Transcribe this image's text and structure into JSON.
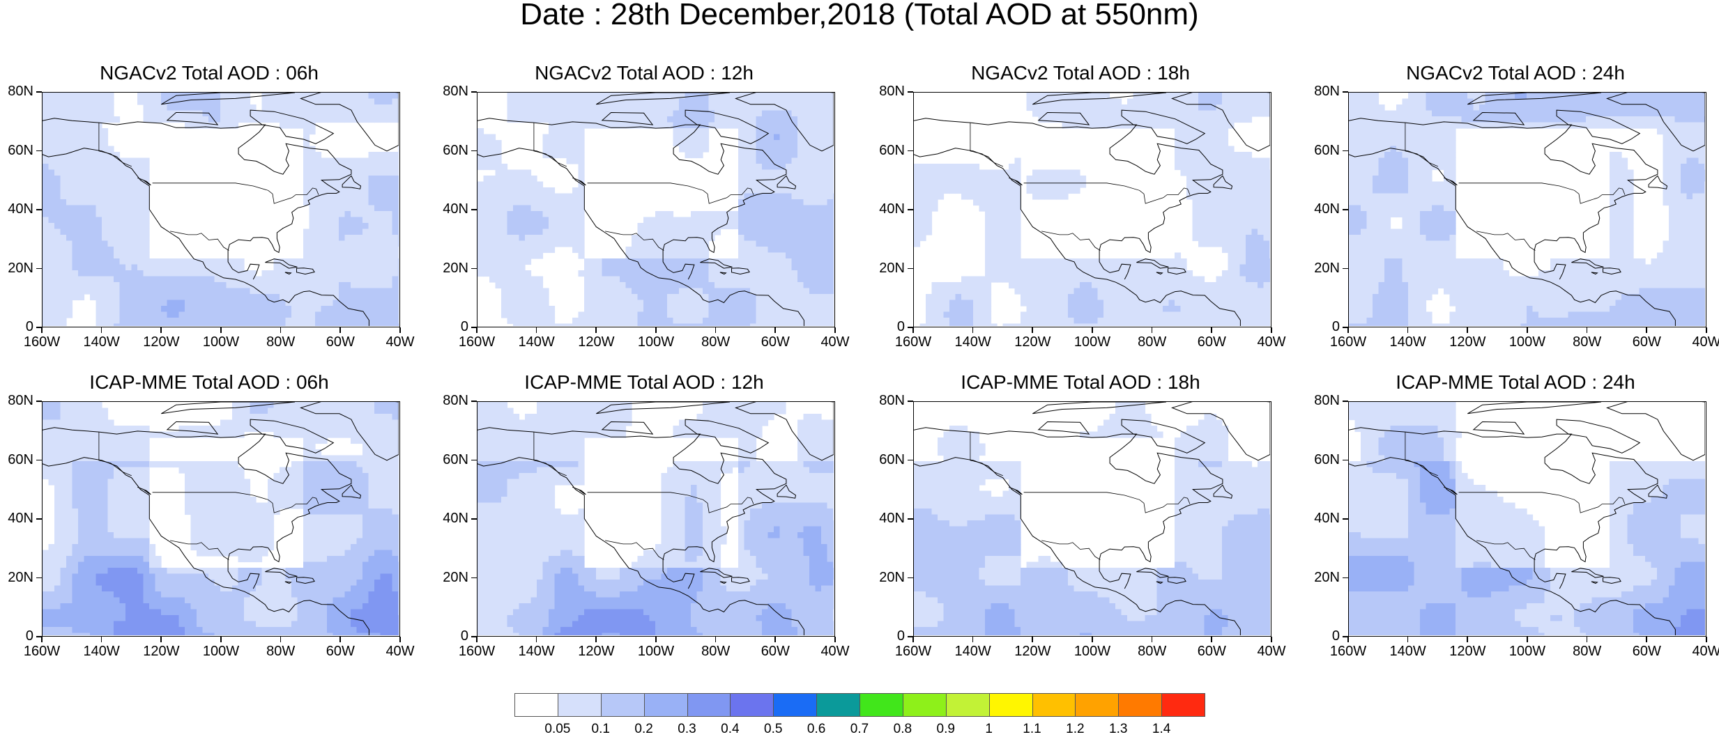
{
  "title": "Date : 28th December,2018 (Total AOD at 550nm)",
  "lat_ticks": [
    "80N",
    "60N",
    "40N",
    "20N",
    "0"
  ],
  "lon_ticks": [
    "160W",
    "140W",
    "120W",
    "100W",
    "80W",
    "60W",
    "40W"
  ],
  "panels": [
    {
      "label": "NGACv2 Total AOD : 06h",
      "model": "NGACv2",
      "hour": "06h"
    },
    {
      "label": "NGACv2 Total AOD : 12h",
      "model": "NGACv2",
      "hour": "12h"
    },
    {
      "label": "NGACv2 Total AOD : 18h",
      "model": "NGACv2",
      "hour": "18h"
    },
    {
      "label": "NGACv2 Total AOD : 24h",
      "model": "NGACv2",
      "hour": "24h"
    },
    {
      "label": "ICAP-MME Total AOD : 06h",
      "model": "ICAP-MME",
      "hour": "06h"
    },
    {
      "label": "ICAP-MME Total AOD : 12h",
      "model": "ICAP-MME",
      "hour": "12h"
    },
    {
      "label": "ICAP-MME Total AOD : 18h",
      "model": "ICAP-MME",
      "hour": "18h"
    },
    {
      "label": "ICAP-MME Total AOD : 24h",
      "model": "ICAP-MME",
      "hour": "24h"
    }
  ],
  "colorbar": {
    "labels": [
      "0.05",
      "0.1",
      "0.2",
      "0.3",
      "0.4",
      "0.5",
      "0.6",
      "0.7",
      "0.8",
      "0.9",
      "1",
      "1.1",
      "1.2",
      "1.3",
      "1.4"
    ],
    "colors": [
      "#ffffff",
      "#d6e0fb",
      "#b7c8f8",
      "#99b1f6",
      "#8097f2",
      "#6b74ee",
      "#1a6cf5",
      "#0b9a9a",
      "#41e61b",
      "#8ef01a",
      "#c2f236",
      "#fff600",
      "#ffc000",
      "#ffa200",
      "#ff7a00",
      "#ff2a10"
    ]
  }
}
